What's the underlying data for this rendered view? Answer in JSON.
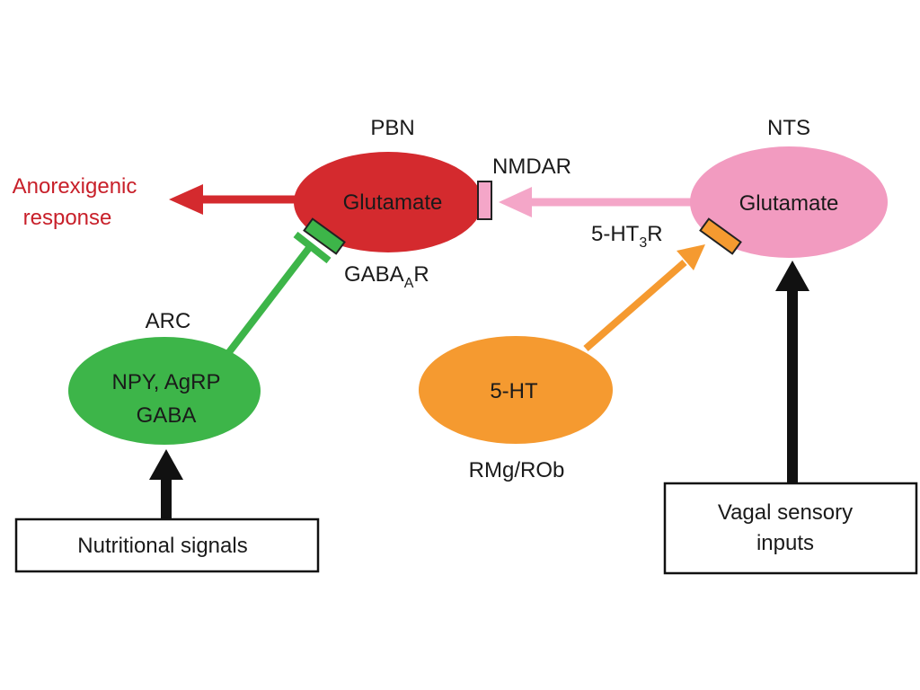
{
  "nodes": {
    "pbn": {
      "region": "PBN",
      "transmitter": "Glutamate",
      "color": "#d42a2e"
    },
    "nts": {
      "region": "NTS",
      "transmitter": "Glutamate",
      "color": "#f29bc0"
    },
    "arc": {
      "region": "ARC",
      "line1": "NPY, AgRP",
      "line2": "GABA",
      "color": "#3db549"
    },
    "rmg": {
      "region": "RMg/ROb",
      "transmitter": "5-HT",
      "color": "#f59a30"
    }
  },
  "receptors": {
    "nmdar": {
      "label": "NMDAR",
      "color": "#f4a6c8"
    },
    "gabaar": {
      "base": "GABA",
      "subscript": "A",
      "suffix": "R",
      "color": "#3db549"
    },
    "ht3r": {
      "base": "5-HT",
      "subscript": "3",
      "suffix": "R",
      "color": "#f59a30"
    }
  },
  "output": {
    "line1": "Anorexigenic",
    "line2": "response",
    "color": "#c8202a"
  },
  "inputs": {
    "nutritional": {
      "label": "Nutritional signals"
    },
    "vagal": {
      "line1": "Vagal sensory",
      "line2": "inputs"
    }
  },
  "arrows": {
    "black": "#111111"
  }
}
